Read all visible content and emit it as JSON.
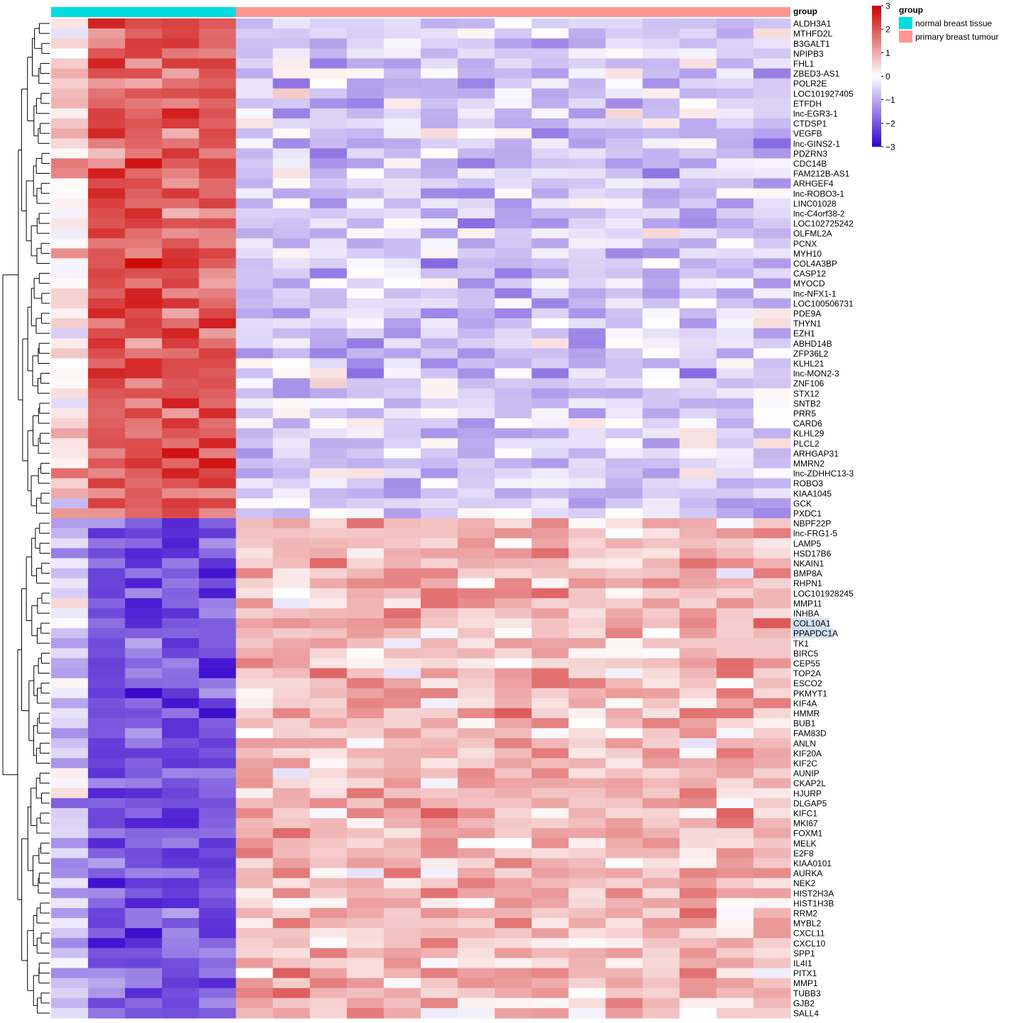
{
  "chart_data": {
    "type": "heatmap",
    "annotation_title": "group",
    "legend_title": "group",
    "groups": [
      {
        "name": "normal breast tissue",
        "color": "#00DCE0",
        "count": 5
      },
      {
        "name": "primary breast tumour",
        "color": "#FF9690",
        "count": 15
      }
    ],
    "color_scale": {
      "min": -3,
      "max": 3,
      "low_color": "#3300CC",
      "mid_color": "#FFFFFF",
      "high_color": "#CC0000",
      "ticks": [
        "3",
        "2",
        "1",
        "0",
        "−1",
        "−2",
        "−3"
      ]
    },
    "highlighted_genes": [
      "COL10A1",
      "PPAPDC1A"
    ],
    "genes_up_in_normal": [
      "ALDH3A1",
      "MTHFD2L",
      "B3GALT1",
      "NPIPB3",
      "FHL1",
      "ZBED3-AS1",
      "POLR2E",
      "LOC101927405",
      "ETFDH",
      "lnc-EGR3-1",
      "CTDSP1",
      "VEGFB",
      "lnc-GINS2-1",
      "PDZRN3",
      "CDC14B",
      "FAM212B-AS1",
      "ARHGEF4",
      "lnc-ROBO3-1",
      "LINC01028",
      "lnc-C4orf38-2",
      "LOC102725242",
      "OLFML2A",
      "PCNX",
      "MYH10",
      "COL4A3BP",
      "CASP12",
      "MYOCD",
      "lnc-NFX1-1",
      "LOC100506731",
      "PDE9A",
      "THYN1",
      "EZH1",
      "ABHD14B",
      "ZFP36L2",
      "KLHL21",
      "lnc-MON2-3",
      "ZNF106",
      "STX12",
      "SNTB2",
      "PRR5",
      "CARD6",
      "KLHL29",
      "PLCL2",
      "ARHGAP31",
      "MMRN2",
      "lnc-ZDHHC13-3",
      "ROBO3",
      "KIAA1045",
      "GCK",
      "PXDC1"
    ],
    "genes_up_in_tumour": [
      "NBPF22P",
      "lnc-FRG1-5",
      "LAMP5",
      "HSD17B6",
      "NKAIN1",
      "BMP8A",
      "RHPN1",
      "LOC101928245",
      "MMP11",
      "INHBA",
      "COL10A1",
      "PPAPDC1A",
      "TK1",
      "BIRC5",
      "CEP55",
      "TOP2A",
      "ESCO2",
      "PKMYT1",
      "KIF4A",
      "HMMR",
      "BUB1",
      "FAM83D",
      "ANLN",
      "KIF20A",
      "KIF2C",
      "AUNIP",
      "CKAP2L",
      "HJURP",
      "DLGAP5",
      "KIFC1",
      "MKI67",
      "FOXM1",
      "MELK",
      "E2F8",
      "KIAA0101",
      "AURKA",
      "NEK2",
      "HIST2H3A",
      "HIST1H3B",
      "RRM2",
      "MYBL2",
      "CXCL11",
      "CXCL10",
      "SPP1",
      "IL4I1",
      "PITX1",
      "MMP1",
      "TUBB3",
      "GJB2",
      "SALL4"
    ]
  }
}
